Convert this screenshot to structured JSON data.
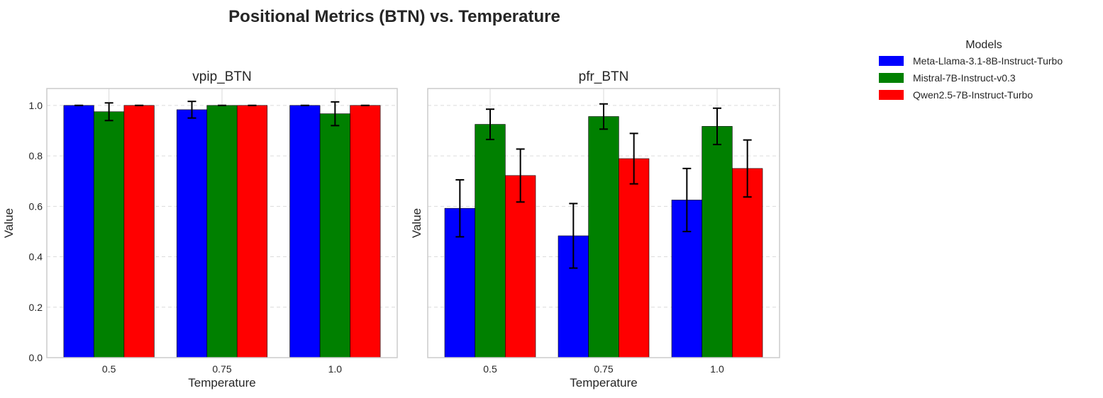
{
  "figure": {
    "title": "Positional Metrics (BTN) vs. Temperature"
  },
  "legend": {
    "title": "Models",
    "placement": "outside-right-top"
  },
  "chart_data": [
    {
      "type": "bar",
      "title": "vpip_BTN",
      "xlabel": "Temperature",
      "ylabel": "Value",
      "categories": [
        "0.5",
        "0.75",
        "1.0"
      ],
      "ylim": [
        0,
        1.067
      ],
      "yticks": [
        "0.0",
        "0.2",
        "0.4",
        "0.6",
        "0.8",
        "1.0"
      ],
      "grid": true,
      "series": [
        {
          "name": "Meta-Llama-3.1-8B-Instruct-Turbo",
          "color": "#0000ff",
          "values": [
            1.0,
            0.983,
            1.0
          ],
          "errors": [
            0.0,
            0.033,
            0.0
          ]
        },
        {
          "name": "Mistral-7B-Instruct-v0.3",
          "color": "#008000",
          "values": [
            0.975,
            1.0,
            0.967
          ],
          "errors": [
            0.035,
            0.0,
            0.047
          ]
        },
        {
          "name": "Qwen2.5-7B-Instruct-Turbo",
          "color": "#ff0000",
          "values": [
            1.0,
            1.0,
            1.0
          ],
          "errors": [
            0.0,
            0.0,
            0.0
          ]
        }
      ]
    },
    {
      "type": "bar",
      "title": "pfr_BTN",
      "xlabel": "Temperature",
      "ylabel": "Value",
      "categories": [
        "0.5",
        "0.75",
        "1.0"
      ],
      "ylim": [
        0,
        1.067
      ],
      "yticks": [],
      "grid": true,
      "series": [
        {
          "name": "Meta-Llama-3.1-8B-Instruct-Turbo",
          "color": "#0000ff",
          "values": [
            0.592,
            0.483,
            0.625
          ],
          "errors": [
            0.113,
            0.128,
            0.125
          ]
        },
        {
          "name": "Mistral-7B-Instruct-v0.3",
          "color": "#008000",
          "values": [
            0.925,
            0.956,
            0.917
          ],
          "errors": [
            0.06,
            0.05,
            0.072
          ]
        },
        {
          "name": "Qwen2.5-7B-Instruct-Turbo",
          "color": "#ff0000",
          "values": [
            0.722,
            0.789,
            0.75
          ],
          "errors": [
            0.105,
            0.1,
            0.113
          ]
        }
      ]
    }
  ]
}
